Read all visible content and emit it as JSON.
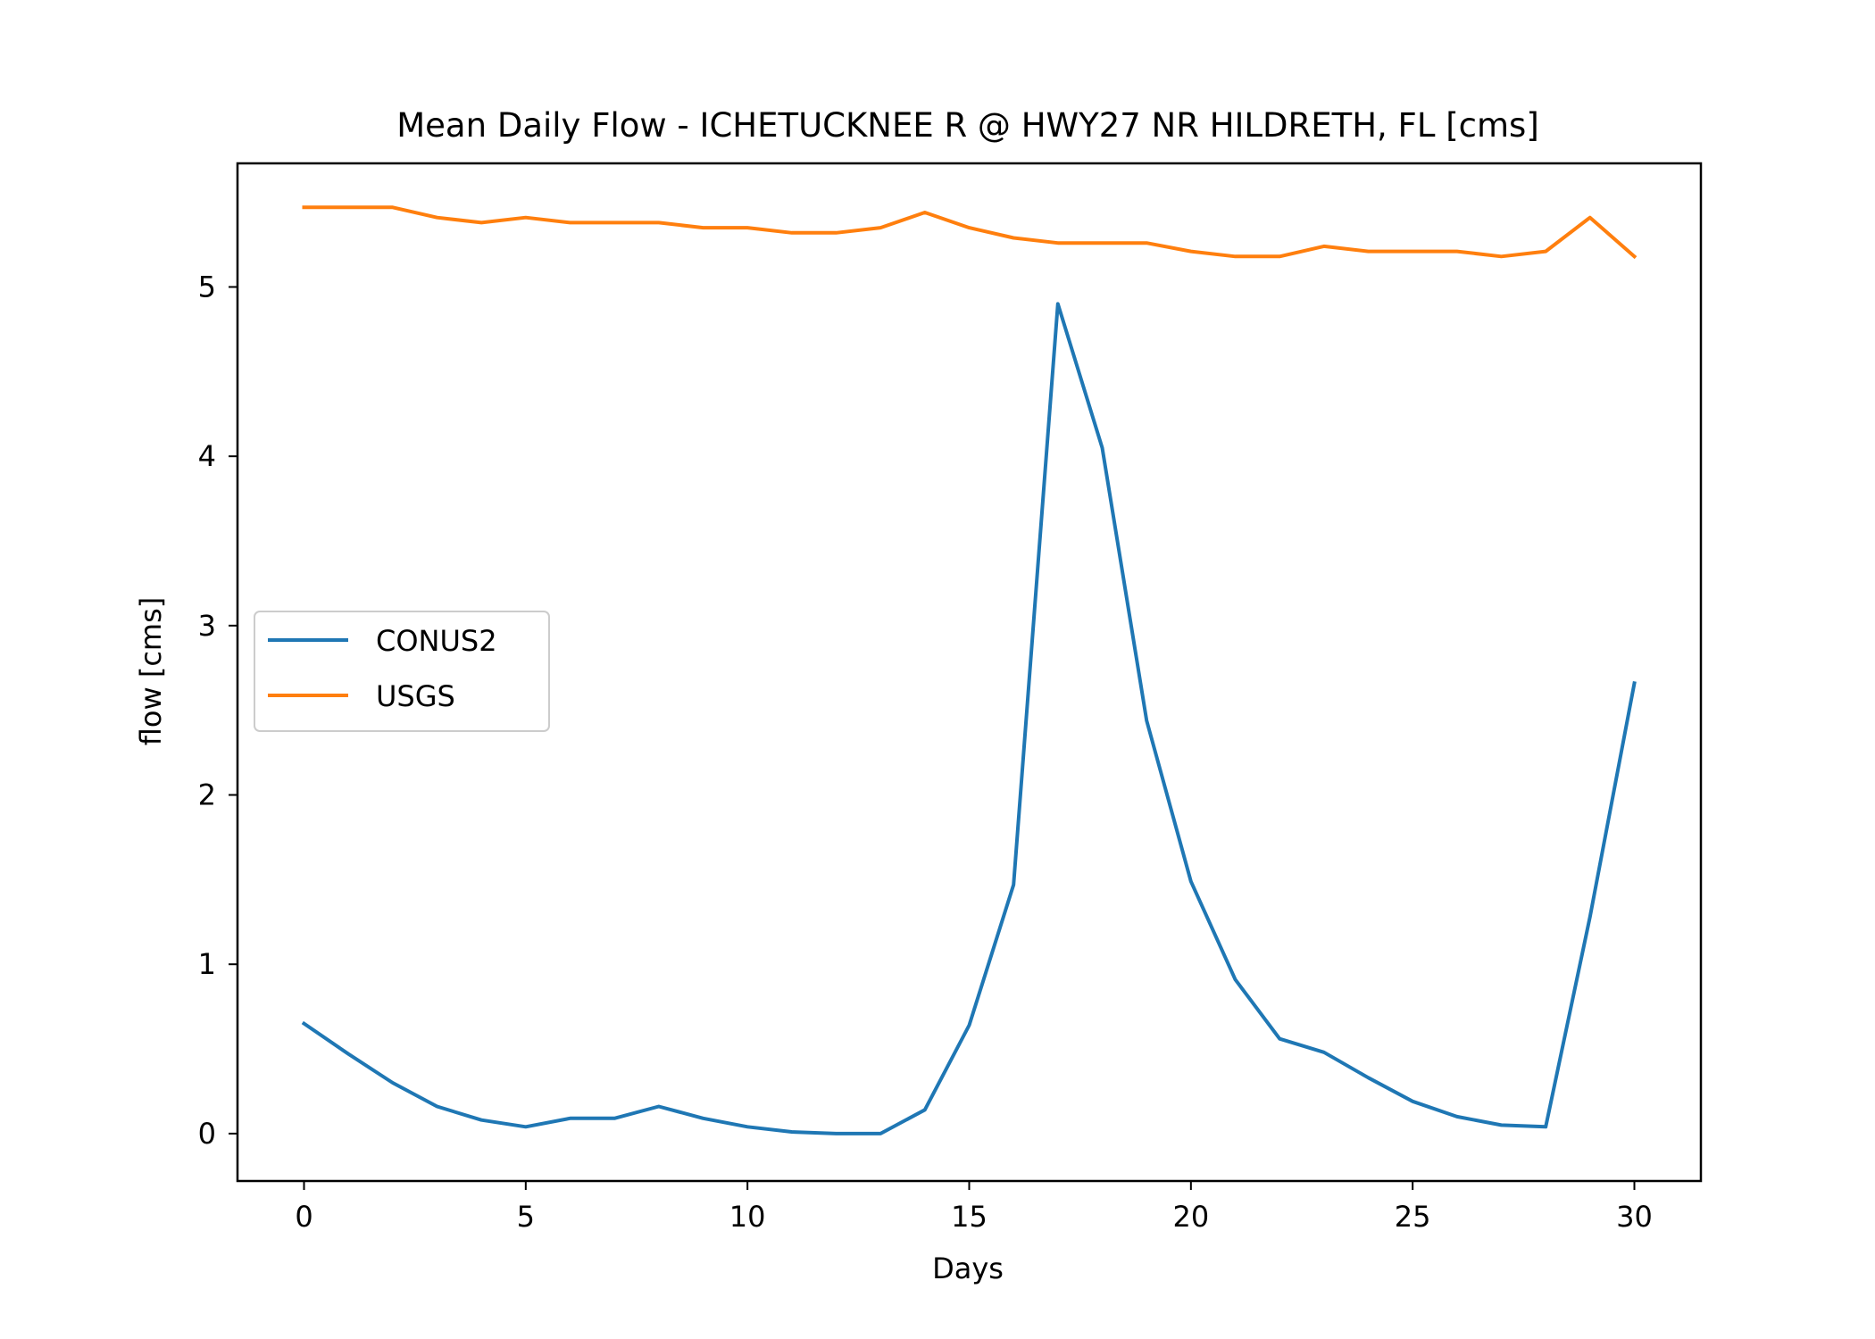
{
  "chart_data": {
    "type": "line",
    "title": "Mean Daily Flow - ICHETUCKNEE R @ HWY27 NR HILDRETH, FL [cms]",
    "xlabel": "Days",
    "ylabel": "flow [cms]",
    "xlim": [
      -1.5,
      31.5
    ],
    "ylim": [
      -0.28,
      5.73
    ],
    "xticks": [
      0,
      5,
      10,
      15,
      20,
      25,
      30
    ],
    "xtick_labels": [
      "0",
      "5",
      "10",
      "15",
      "20",
      "25",
      "30"
    ],
    "yticks": [
      0,
      1,
      2,
      3,
      4,
      5
    ],
    "ytick_labels": [
      "0",
      "1",
      "2",
      "3",
      "4",
      "5"
    ],
    "grid": false,
    "legend_position": "center-left",
    "x": [
      0,
      1,
      2,
      3,
      4,
      5,
      6,
      7,
      8,
      9,
      10,
      11,
      12,
      13,
      14,
      15,
      16,
      17,
      18,
      19,
      20,
      21,
      22,
      23,
      24,
      25,
      26,
      27,
      28,
      29,
      30
    ],
    "series": [
      {
        "name": "CONUS2",
        "color": "#1f77b4",
        "values": [
          0.65,
          0.47,
          0.3,
          0.16,
          0.08,
          0.04,
          0.09,
          0.09,
          0.16,
          0.09,
          0.04,
          0.01,
          0.0,
          0.0,
          0.14,
          0.64,
          1.47,
          4.9,
          4.05,
          2.44,
          1.49,
          0.91,
          0.56,
          0.48,
          0.33,
          0.19,
          0.1,
          0.05,
          0.04,
          1.28,
          2.66
        ]
      },
      {
        "name": "USGS",
        "color": "#ff7f0e",
        "values": [
          5.47,
          5.47,
          5.47,
          5.41,
          5.38,
          5.41,
          5.38,
          5.38,
          5.38,
          5.35,
          5.35,
          5.32,
          5.32,
          5.35,
          5.44,
          5.35,
          5.29,
          5.26,
          5.26,
          5.26,
          5.21,
          5.18,
          5.18,
          5.24,
          5.21,
          5.21,
          5.21,
          5.18,
          5.21,
          5.41,
          5.18
        ]
      }
    ]
  }
}
